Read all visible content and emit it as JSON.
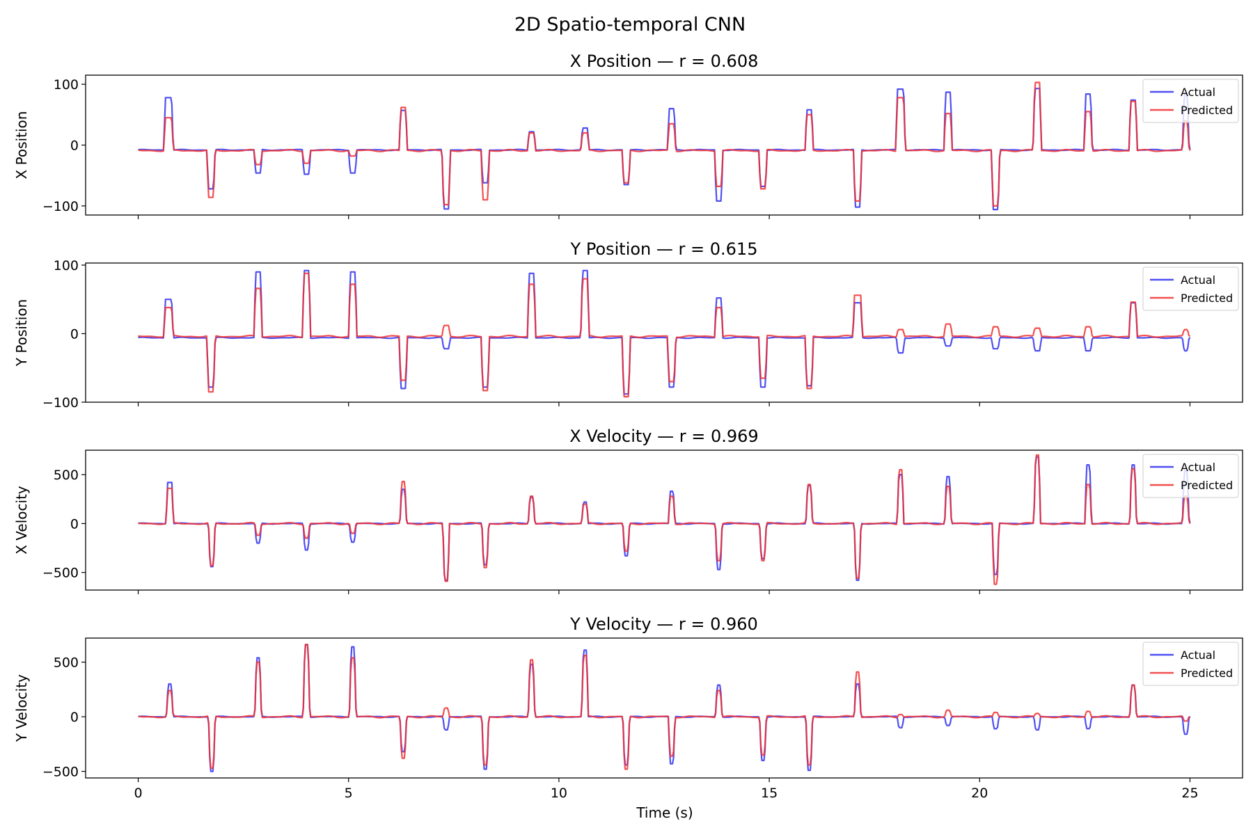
{
  "figure_title": "2D Spatio-temporal CNN",
  "xlabel": "Time (s)",
  "chart_data": [
    {
      "type": "line",
      "title": "X Position — r = 0.608",
      "ylabel": "X Position",
      "ylim": [
        -115,
        115
      ],
      "yticks": [
        -100,
        0,
        100
      ],
      "ytick_labels": [
        "−100",
        "0",
        "100"
      ],
      "xlim": [
        -1.25,
        26.25
      ],
      "xticks": [
        0,
        5,
        10,
        15,
        20,
        25
      ],
      "xtick_labels": [
        "0",
        "5",
        "10",
        "15",
        "20",
        "25"
      ],
      "show_xtick_labels": false,
      "legend": {
        "position": "top-right",
        "entries": [
          "Actual",
          "Predicted"
        ]
      },
      "baseline": {
        "actual": -8,
        "predicted": -9
      },
      "series_colors": {
        "actual": "#3030f0",
        "predicted": "#f03030"
      },
      "events": [
        {
          "t": 0.72,
          "w": 0.15,
          "a": 78,
          "p": 45
        },
        {
          "t": 1.73,
          "w": 0.12,
          "a": -72,
          "p": -86
        },
        {
          "t": 2.85,
          "w": 0.12,
          "a": -46,
          "p": -32
        },
        {
          "t": 4.0,
          "w": 0.12,
          "a": -48,
          "p": -30
        },
        {
          "t": 5.1,
          "w": 0.12,
          "a": -46,
          "p": -18
        },
        {
          "t": 6.3,
          "w": 0.12,
          "a": 57,
          "p": 62
        },
        {
          "t": 7.32,
          "w": 0.12,
          "a": -105,
          "p": -98
        },
        {
          "t": 8.25,
          "w": 0.12,
          "a": -62,
          "p": -90
        },
        {
          "t": 9.35,
          "w": 0.12,
          "a": 22,
          "p": 20
        },
        {
          "t": 10.62,
          "w": 0.12,
          "a": 28,
          "p": 20
        },
        {
          "t": 11.6,
          "w": 0.12,
          "a": -65,
          "p": -62
        },
        {
          "t": 12.68,
          "w": 0.12,
          "a": 60,
          "p": 35
        },
        {
          "t": 13.8,
          "w": 0.12,
          "a": -92,
          "p": -68
        },
        {
          "t": 14.85,
          "w": 0.12,
          "a": -68,
          "p": -72
        },
        {
          "t": 15.95,
          "w": 0.12,
          "a": 58,
          "p": 50
        },
        {
          "t": 17.1,
          "w": 0.12,
          "a": -102,
          "p": -92
        },
        {
          "t": 18.12,
          "w": 0.15,
          "a": 92,
          "p": 78
        },
        {
          "t": 19.25,
          "w": 0.12,
          "a": 87,
          "p": 52
        },
        {
          "t": 20.38,
          "w": 0.12,
          "a": -106,
          "p": -100
        },
        {
          "t": 21.37,
          "w": 0.12,
          "a": 93,
          "p": 103
        },
        {
          "t": 22.58,
          "w": 0.12,
          "a": 84,
          "p": 55
        },
        {
          "t": 23.65,
          "w": 0.12,
          "a": 74,
          "p": 72
        },
        {
          "t": 24.9,
          "w": 0.08,
          "a": 85,
          "p": 40
        }
      ]
    },
    {
      "type": "line",
      "title": "Y Position — r = 0.615",
      "ylabel": "Y Position",
      "ylim": [
        -100,
        103
      ],
      "yticks": [
        -100,
        0,
        100
      ],
      "ytick_labels": [
        "−100",
        "0",
        "100"
      ],
      "xlim": [
        -1.25,
        26.25
      ],
      "xticks": [
        0,
        5,
        10,
        15,
        20,
        25
      ],
      "xtick_labels": [
        "0",
        "5",
        "10",
        "15",
        "20",
        "25"
      ],
      "show_xtick_labels": false,
      "legend": {
        "position": "top-right",
        "entries": [
          "Actual",
          "Predicted"
        ]
      },
      "baseline": {
        "actual": -6,
        "predicted": -4
      },
      "series_colors": {
        "actual": "#3030f0",
        "predicted": "#f03030"
      },
      "events": [
        {
          "t": 0.72,
          "w": 0.15,
          "a": 50,
          "p": 38
        },
        {
          "t": 1.73,
          "w": 0.12,
          "a": -78,
          "p": -85
        },
        {
          "t": 2.85,
          "w": 0.12,
          "a": 90,
          "p": 66
        },
        {
          "t": 4.0,
          "w": 0.12,
          "a": 92,
          "p": 88
        },
        {
          "t": 5.1,
          "w": 0.12,
          "a": 90,
          "p": 72
        },
        {
          "t": 6.3,
          "w": 0.12,
          "a": -80,
          "p": -68
        },
        {
          "t": 7.32,
          "w": 0.12,
          "a": -22,
          "p": 12
        },
        {
          "t": 8.25,
          "w": 0.12,
          "a": -78,
          "p": -83
        },
        {
          "t": 9.35,
          "w": 0.12,
          "a": 88,
          "p": 72
        },
        {
          "t": 10.62,
          "w": 0.12,
          "a": 92,
          "p": 80
        },
        {
          "t": 11.6,
          "w": 0.12,
          "a": -88,
          "p": -92
        },
        {
          "t": 12.68,
          "w": 0.12,
          "a": -78,
          "p": -70
        },
        {
          "t": 13.8,
          "w": 0.12,
          "a": 52,
          "p": 38
        },
        {
          "t": 14.85,
          "w": 0.12,
          "a": -78,
          "p": -65
        },
        {
          "t": 15.95,
          "w": 0.12,
          "a": -76,
          "p": -80
        },
        {
          "t": 17.1,
          "w": 0.15,
          "a": 45,
          "p": 56
        },
        {
          "t": 18.12,
          "w": 0.12,
          "a": -28,
          "p": 6
        },
        {
          "t": 19.25,
          "w": 0.12,
          "a": -18,
          "p": 14
        },
        {
          "t": 20.38,
          "w": 0.12,
          "a": -22,
          "p": 10
        },
        {
          "t": 21.37,
          "w": 0.12,
          "a": -25,
          "p": 8
        },
        {
          "t": 22.58,
          "w": 0.12,
          "a": -25,
          "p": 10
        },
        {
          "t": 23.65,
          "w": 0.12,
          "a": 45,
          "p": 46
        },
        {
          "t": 24.9,
          "w": 0.08,
          "a": -25,
          "p": 6
        }
      ]
    },
    {
      "type": "line",
      "title": "X Velocity — r = 0.969",
      "ylabel": "X Velocity",
      "ylim": [
        -680,
        750
      ],
      "yticks": [
        -500,
        0,
        500
      ],
      "ytick_labels": [
        "−500",
        "0",
        "500"
      ],
      "xlim": [
        -1.25,
        26.25
      ],
      "xticks": [
        0,
        5,
        10,
        15,
        20,
        25
      ],
      "xtick_labels": [
        "0",
        "5",
        "10",
        "15",
        "20",
        "25"
      ],
      "show_xtick_labels": false,
      "legend": {
        "position": "top-right",
        "entries": [
          "Actual",
          "Predicted"
        ]
      },
      "baseline": {
        "actual": 0,
        "predicted": 0
      },
      "series_colors": {
        "actual": "#3030f0",
        "predicted": "#f03030"
      },
      "events": [
        {
          "t": 0.75,
          "w": 0.1,
          "a": 420,
          "p": 360
        },
        {
          "t": 1.75,
          "w": 0.08,
          "a": -440,
          "p": -430
        },
        {
          "t": 2.85,
          "w": 0.08,
          "a": -200,
          "p": -120
        },
        {
          "t": 4.0,
          "w": 0.08,
          "a": -270,
          "p": -150
        },
        {
          "t": 5.1,
          "w": 0.08,
          "a": -190,
          "p": -100
        },
        {
          "t": 6.3,
          "w": 0.08,
          "a": 350,
          "p": 430
        },
        {
          "t": 7.32,
          "w": 0.08,
          "a": -580,
          "p": -590
        },
        {
          "t": 8.25,
          "w": 0.08,
          "a": -420,
          "p": -450
        },
        {
          "t": 9.35,
          "w": 0.08,
          "a": 270,
          "p": 280
        },
        {
          "t": 10.62,
          "w": 0.08,
          "a": 220,
          "p": 200
        },
        {
          "t": 11.6,
          "w": 0.08,
          "a": -330,
          "p": -280
        },
        {
          "t": 12.68,
          "w": 0.08,
          "a": 330,
          "p": 280
        },
        {
          "t": 13.8,
          "w": 0.08,
          "a": -470,
          "p": -380
        },
        {
          "t": 14.85,
          "w": 0.08,
          "a": -360,
          "p": -380
        },
        {
          "t": 15.95,
          "w": 0.08,
          "a": 390,
          "p": 400
        },
        {
          "t": 17.1,
          "w": 0.08,
          "a": -580,
          "p": -560
        },
        {
          "t": 18.12,
          "w": 0.08,
          "a": 500,
          "p": 550
        },
        {
          "t": 19.25,
          "w": 0.08,
          "a": 480,
          "p": 380
        },
        {
          "t": 20.38,
          "w": 0.08,
          "a": -520,
          "p": -620
        },
        {
          "t": 21.37,
          "w": 0.08,
          "a": 680,
          "p": 700
        },
        {
          "t": 22.58,
          "w": 0.08,
          "a": 600,
          "p": 400
        },
        {
          "t": 23.65,
          "w": 0.08,
          "a": 600,
          "p": 560
        },
        {
          "t": 24.9,
          "w": 0.08,
          "a": 540,
          "p": 280
        }
      ]
    },
    {
      "type": "line",
      "title": "Y Velocity — r = 0.960",
      "ylabel": "Y Velocity",
      "ylim": [
        -560,
        720
      ],
      "yticks": [
        -500,
        0,
        500
      ],
      "ytick_labels": [
        "−500",
        "0",
        "500"
      ],
      "xlim": [
        -1.25,
        26.25
      ],
      "xticks": [
        0,
        5,
        10,
        15,
        20,
        25
      ],
      "xtick_labels": [
        "0",
        "5",
        "10",
        "15",
        "20",
        "25"
      ],
      "show_xtick_labels": true,
      "legend": {
        "position": "top-right",
        "entries": [
          "Actual",
          "Predicted"
        ]
      },
      "baseline": {
        "actual": 0,
        "predicted": 0
      },
      "series_colors": {
        "actual": "#3030f0",
        "predicted": "#f03030"
      },
      "events": [
        {
          "t": 0.75,
          "w": 0.08,
          "a": 300,
          "p": 240
        },
        {
          "t": 1.75,
          "w": 0.08,
          "a": -500,
          "p": -470
        },
        {
          "t": 2.85,
          "w": 0.08,
          "a": 540,
          "p": 500
        },
        {
          "t": 4.0,
          "w": 0.08,
          "a": 660,
          "p": 660
        },
        {
          "t": 5.1,
          "w": 0.08,
          "a": 640,
          "p": 540
        },
        {
          "t": 6.3,
          "w": 0.08,
          "a": -320,
          "p": -380
        },
        {
          "t": 7.32,
          "w": 0.08,
          "a": -120,
          "p": 80
        },
        {
          "t": 8.25,
          "w": 0.08,
          "a": -480,
          "p": -440
        },
        {
          "t": 9.35,
          "w": 0.08,
          "a": 480,
          "p": 520
        },
        {
          "t": 10.62,
          "w": 0.08,
          "a": 610,
          "p": 560
        },
        {
          "t": 11.6,
          "w": 0.08,
          "a": -440,
          "p": -480
        },
        {
          "t": 12.68,
          "w": 0.08,
          "a": -430,
          "p": -360
        },
        {
          "t": 13.8,
          "w": 0.08,
          "a": 290,
          "p": 240
        },
        {
          "t": 14.85,
          "w": 0.08,
          "a": -400,
          "p": -350
        },
        {
          "t": 15.95,
          "w": 0.08,
          "a": -490,
          "p": -440
        },
        {
          "t": 17.1,
          "w": 0.08,
          "a": 300,
          "p": 410
        },
        {
          "t": 18.12,
          "w": 0.08,
          "a": -100,
          "p": 20
        },
        {
          "t": 19.25,
          "w": 0.08,
          "a": -80,
          "p": 60
        },
        {
          "t": 20.38,
          "w": 0.08,
          "a": -110,
          "p": 40
        },
        {
          "t": 21.37,
          "w": 0.08,
          "a": -120,
          "p": 30
        },
        {
          "t": 22.58,
          "w": 0.08,
          "a": -110,
          "p": 50
        },
        {
          "t": 23.65,
          "w": 0.08,
          "a": 290,
          "p": 290
        },
        {
          "t": 24.9,
          "w": 0.08,
          "a": -160,
          "p": -40
        }
      ]
    }
  ]
}
